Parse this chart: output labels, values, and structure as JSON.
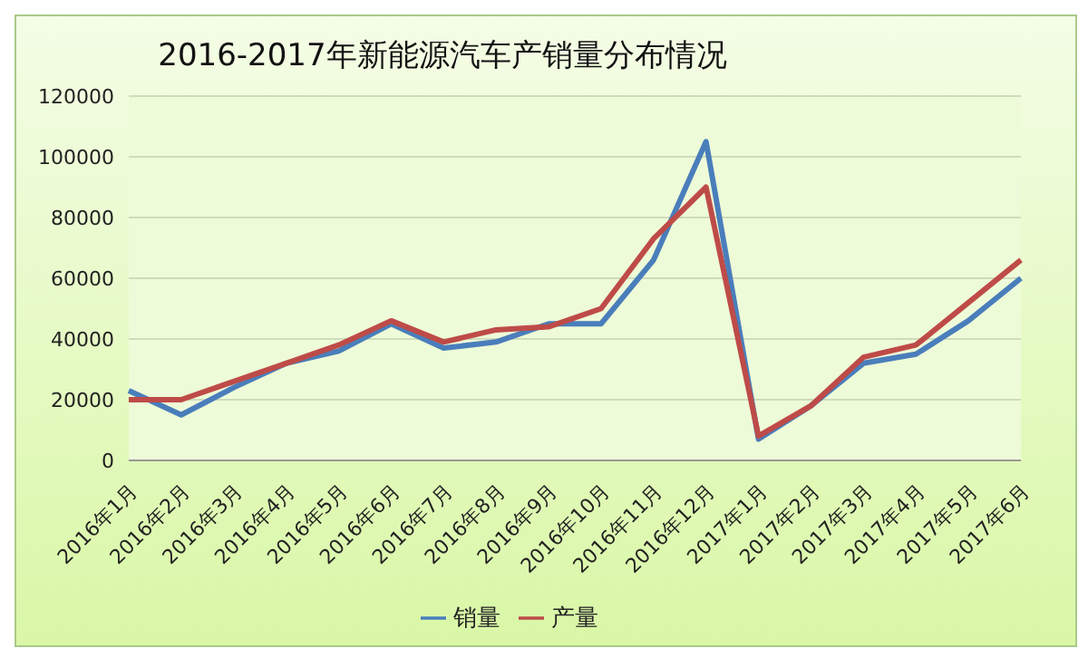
{
  "chart_data": {
    "type": "line",
    "title": "2016-2017年新能源汽车产销量分布情况",
    "categories": [
      "2016年1月",
      "2016年2月",
      "2016年3月",
      "2016年4月",
      "2016年5月",
      "2016年6月",
      "2016年7月",
      "2016年8月",
      "2016年9月",
      "2016年10月",
      "2016年11月",
      "2016年12月",
      "2017年1月",
      "2017年2月",
      "2017年3月",
      "2017年4月",
      "2017年5月",
      "2017年6月"
    ],
    "series": [
      {
        "name": "销量",
        "color": "#4a7ebb",
        "values": [
          23000,
          15000,
          24000,
          32000,
          36000,
          45000,
          37000,
          39000,
          45000,
          45000,
          66000,
          105000,
          7000,
          18000,
          32000,
          35000,
          46000,
          60000
        ]
      },
      {
        "name": "产量",
        "color": "#be4b48",
        "values": [
          20000,
          20000,
          26000,
          32000,
          38000,
          46000,
          39000,
          43000,
          44000,
          50000,
          73000,
          90000,
          8000,
          18000,
          34000,
          38000,
          52000,
          66000
        ]
      }
    ],
    "ylim": [
      0,
      120000
    ],
    "yticks": [
      0,
      20000,
      40000,
      60000,
      80000,
      100000,
      120000
    ],
    "grid": "y",
    "legend": "bottom",
    "marker": "none",
    "line_style": "solid"
  }
}
